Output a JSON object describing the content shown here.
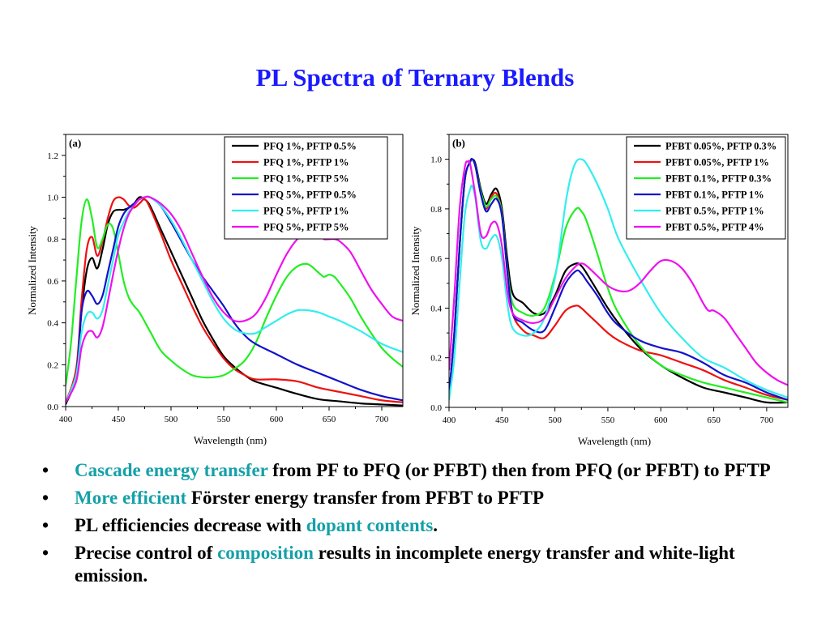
{
  "title": "PL Spectra of Ternary Blends",
  "bullets": [
    {
      "segments": [
        {
          "text": "Cascade energy transfer",
          "hl": true
        },
        {
          "text": " from PF to PFQ (or PFBT) then from PFQ (or PFBT) to PFTP",
          "hl": false
        }
      ]
    },
    {
      "segments": [
        {
          "text": "More efficient",
          "hl": true
        },
        {
          "text": " Förster energy transfer from PFBT to PFTP",
          "hl": false
        }
      ]
    },
    {
      "segments": [
        {
          "text": "PL efficiencies decrease with ",
          "hl": false
        },
        {
          "text": "dopant contents",
          "hl": true
        },
        {
          "text": ".",
          "hl": false
        }
      ]
    },
    {
      "segments": [
        {
          "text": "Precise control of ",
          "hl": false
        },
        {
          "text": "composition",
          "hl": true
        },
        {
          "text": " results in incomplete energy transfer and white-light emission.",
          "hl": false
        }
      ]
    }
  ],
  "colors": {
    "title": "#1a1aff",
    "highlight": "#15a0a8",
    "black": "#000000",
    "red": "#ee1111",
    "green": "#22ee22",
    "blue": "#1111cc",
    "cyan": "#33eeee",
    "magenta": "#ee11ee"
  },
  "chart_data": [
    {
      "type": "line",
      "panel_label": "(a)",
      "xlabel": "Wavelength (nm)",
      "ylabel": "Normalized Intensity",
      "xlim": [
        400,
        720
      ],
      "ylim": [
        0.0,
        1.3
      ],
      "xticks": [
        400,
        450,
        500,
        550,
        600,
        650,
        700
      ],
      "yticks": [
        0.0,
        0.2,
        0.4,
        0.6,
        0.8,
        1.0,
        1.2
      ],
      "ytick_labels": [
        "0.0",
        "0.2",
        "0.4",
        "0.6",
        "0.8",
        "1.0",
        "1.2"
      ],
      "legend_position": "top-right",
      "series": [
        {
          "name": "PFQ 1%, PFTP 0.5%",
          "color": "black",
          "x": [
            400,
            410,
            415,
            420,
            425,
            430,
            435,
            440,
            445,
            450,
            455,
            460,
            465,
            470,
            475,
            480,
            490,
            500,
            510,
            520,
            530,
            540,
            550,
            560,
            570,
            580,
            600,
            620,
            640,
            660,
            680,
            700,
            720
          ],
          "y": [
            0.01,
            0.15,
            0.45,
            0.65,
            0.71,
            0.66,
            0.75,
            0.87,
            0.93,
            0.94,
            0.94,
            0.95,
            0.97,
            1.0,
            0.99,
            0.96,
            0.85,
            0.74,
            0.63,
            0.52,
            0.41,
            0.32,
            0.24,
            0.19,
            0.15,
            0.12,
            0.09,
            0.06,
            0.035,
            0.025,
            0.015,
            0.01,
            0.005
          ]
        },
        {
          "name": "PFQ 1%, PFTP 1%",
          "color": "red",
          "x": [
            400,
            410,
            415,
            420,
            425,
            430,
            435,
            440,
            445,
            450,
            455,
            460,
            465,
            470,
            475,
            480,
            490,
            500,
            510,
            520,
            530,
            540,
            550,
            560,
            570,
            580,
            600,
            620,
            640,
            660,
            680,
            700,
            720
          ],
          "y": [
            0.02,
            0.18,
            0.5,
            0.75,
            0.81,
            0.72,
            0.79,
            0.9,
            0.98,
            1.0,
            0.99,
            0.96,
            0.95,
            0.97,
            0.99,
            0.95,
            0.83,
            0.7,
            0.59,
            0.48,
            0.38,
            0.3,
            0.23,
            0.18,
            0.15,
            0.13,
            0.13,
            0.12,
            0.09,
            0.07,
            0.05,
            0.03,
            0.02
          ]
        },
        {
          "name": "PFQ 1%, PFTP 5%",
          "color": "green",
          "x": [
            400,
            405,
            410,
            415,
            420,
            425,
            430,
            435,
            440,
            445,
            450,
            455,
            460,
            465,
            470,
            480,
            490,
            500,
            510,
            520,
            530,
            540,
            550,
            560,
            570,
            580,
            590,
            600,
            610,
            620,
            630,
            640,
            645,
            650,
            655,
            660,
            670,
            680,
            690,
            700,
            710,
            720
          ],
          "y": [
            0.1,
            0.3,
            0.6,
            0.88,
            0.99,
            0.9,
            0.76,
            0.8,
            0.87,
            0.85,
            0.73,
            0.6,
            0.52,
            0.48,
            0.45,
            0.36,
            0.27,
            0.22,
            0.18,
            0.15,
            0.14,
            0.14,
            0.15,
            0.18,
            0.22,
            0.3,
            0.42,
            0.53,
            0.62,
            0.67,
            0.68,
            0.64,
            0.62,
            0.63,
            0.62,
            0.59,
            0.52,
            0.43,
            0.35,
            0.28,
            0.23,
            0.19
          ]
        },
        {
          "name": "PFQ 5%, PFTP 0.5%",
          "color": "blue",
          "x": [
            400,
            410,
            415,
            420,
            425,
            430,
            435,
            440,
            445,
            450,
            455,
            460,
            465,
            470,
            475,
            480,
            490,
            500,
            510,
            520,
            530,
            540,
            550,
            560,
            570,
            580,
            600,
            620,
            640,
            660,
            680,
            700,
            720
          ],
          "y": [
            0.02,
            0.15,
            0.45,
            0.55,
            0.53,
            0.49,
            0.53,
            0.64,
            0.75,
            0.86,
            0.92,
            0.95,
            0.97,
            0.99,
            1.0,
            1.0,
            0.96,
            0.88,
            0.79,
            0.7,
            0.62,
            0.55,
            0.48,
            0.4,
            0.34,
            0.3,
            0.25,
            0.2,
            0.16,
            0.12,
            0.08,
            0.05,
            0.03
          ]
        },
        {
          "name": "PFQ 5%, PFTP 1%",
          "color": "cyan",
          "x": [
            400,
            410,
            415,
            420,
            425,
            430,
            435,
            440,
            445,
            450,
            455,
            460,
            465,
            470,
            475,
            480,
            490,
            500,
            510,
            520,
            530,
            540,
            550,
            560,
            570,
            580,
            590,
            600,
            610,
            620,
            630,
            640,
            650,
            660,
            680,
            700,
            720
          ],
          "y": [
            0.02,
            0.15,
            0.35,
            0.44,
            0.45,
            0.42,
            0.46,
            0.58,
            0.7,
            0.82,
            0.88,
            0.93,
            0.96,
            0.99,
            1.0,
            1.0,
            0.96,
            0.89,
            0.8,
            0.7,
            0.6,
            0.5,
            0.42,
            0.37,
            0.35,
            0.35,
            0.38,
            0.41,
            0.44,
            0.46,
            0.46,
            0.45,
            0.43,
            0.41,
            0.36,
            0.3,
            0.26
          ]
        },
        {
          "name": "PFQ 5%, PFTP 5%",
          "color": "magenta",
          "x": [
            400,
            410,
            415,
            420,
            425,
            430,
            435,
            440,
            445,
            450,
            455,
            460,
            465,
            470,
            475,
            480,
            490,
            500,
            510,
            520,
            530,
            540,
            550,
            560,
            570,
            580,
            590,
            600,
            610,
            620,
            630,
            640,
            645,
            650,
            655,
            660,
            670,
            680,
            690,
            700,
            710,
            720
          ],
          "y": [
            0.02,
            0.12,
            0.28,
            0.35,
            0.36,
            0.33,
            0.38,
            0.5,
            0.63,
            0.75,
            0.85,
            0.92,
            0.96,
            0.99,
            1.0,
            1.0,
            0.97,
            0.92,
            0.84,
            0.73,
            0.62,
            0.52,
            0.45,
            0.41,
            0.41,
            0.44,
            0.52,
            0.63,
            0.73,
            0.8,
            0.83,
            0.82,
            0.8,
            0.8,
            0.8,
            0.79,
            0.74,
            0.65,
            0.56,
            0.49,
            0.43,
            0.41
          ]
        }
      ]
    },
    {
      "type": "line",
      "panel_label": "(b)",
      "xlabel": "Wavelength (nm)",
      "ylabel": "Normalized Intensity",
      "xlim": [
        400,
        720
      ],
      "ylim": [
        0.0,
        1.1
      ],
      "xticks": [
        400,
        450,
        500,
        550,
        600,
        650,
        700
      ],
      "yticks": [
        0.0,
        0.2,
        0.4,
        0.6,
        0.8,
        1.0
      ],
      "ytick_labels": [
        "0.0",
        "0.2",
        "0.4",
        "0.6",
        "0.8",
        "1.0"
      ],
      "legend_position": "top-right",
      "series": [
        {
          "name": "PFBT 0.05%, PFTP 0.3%",
          "color": "black",
          "x": [
            400,
            405,
            410,
            415,
            420,
            422,
            425,
            430,
            435,
            440,
            445,
            450,
            455,
            460,
            470,
            480,
            490,
            500,
            510,
            520,
            525,
            530,
            540,
            550,
            560,
            580,
            600,
            620,
            640,
            660,
            680,
            700,
            720
          ],
          "y": [
            0.05,
            0.3,
            0.65,
            0.92,
            0.99,
            1.0,
            0.98,
            0.88,
            0.82,
            0.86,
            0.88,
            0.8,
            0.6,
            0.46,
            0.42,
            0.38,
            0.38,
            0.45,
            0.55,
            0.58,
            0.57,
            0.54,
            0.47,
            0.4,
            0.34,
            0.24,
            0.17,
            0.12,
            0.08,
            0.06,
            0.04,
            0.02,
            0.02
          ]
        },
        {
          "name": "PFBT 0.05%, PFTP 1%",
          "color": "red",
          "x": [
            400,
            405,
            410,
            415,
            420,
            422,
            425,
            430,
            435,
            440,
            445,
            450,
            455,
            460,
            470,
            480,
            490,
            500,
            510,
            520,
            525,
            530,
            540,
            550,
            560,
            580,
            600,
            620,
            640,
            660,
            680,
            700,
            720
          ],
          "y": [
            0.05,
            0.3,
            0.65,
            0.92,
            0.99,
            1.0,
            0.97,
            0.86,
            0.8,
            0.85,
            0.86,
            0.78,
            0.55,
            0.38,
            0.31,
            0.29,
            0.28,
            0.33,
            0.39,
            0.41,
            0.4,
            0.38,
            0.34,
            0.3,
            0.27,
            0.23,
            0.21,
            0.18,
            0.15,
            0.11,
            0.08,
            0.05,
            0.03
          ]
        },
        {
          "name": "PFBT 0.1%, PFTP 0.3%",
          "color": "green",
          "x": [
            400,
            405,
            410,
            415,
            420,
            422,
            425,
            430,
            435,
            440,
            445,
            450,
            455,
            460,
            470,
            480,
            490,
            500,
            510,
            520,
            525,
            530,
            540,
            550,
            560,
            580,
            600,
            620,
            640,
            660,
            680,
            700,
            720
          ],
          "y": [
            0.04,
            0.3,
            0.65,
            0.92,
            0.99,
            1.0,
            0.97,
            0.87,
            0.81,
            0.84,
            0.85,
            0.78,
            0.56,
            0.42,
            0.38,
            0.37,
            0.4,
            0.53,
            0.72,
            0.8,
            0.79,
            0.75,
            0.62,
            0.48,
            0.38,
            0.25,
            0.17,
            0.13,
            0.1,
            0.08,
            0.06,
            0.04,
            0.02
          ]
        },
        {
          "name": "PFBT 0.1%, PFTP 1%",
          "color": "blue",
          "x": [
            400,
            405,
            410,
            415,
            420,
            422,
            425,
            430,
            435,
            440,
            445,
            450,
            455,
            460,
            470,
            480,
            490,
            500,
            510,
            520,
            525,
            530,
            540,
            550,
            560,
            580,
            600,
            620,
            640,
            660,
            680,
            700,
            720
          ],
          "y": [
            0.05,
            0.3,
            0.65,
            0.92,
            0.99,
            1.0,
            0.97,
            0.86,
            0.79,
            0.82,
            0.84,
            0.77,
            0.55,
            0.38,
            0.34,
            0.31,
            0.31,
            0.4,
            0.5,
            0.55,
            0.54,
            0.51,
            0.45,
            0.38,
            0.33,
            0.27,
            0.24,
            0.22,
            0.18,
            0.13,
            0.1,
            0.06,
            0.03
          ]
        },
        {
          "name": "PFBT 0.5%, PFTP 1%",
          "color": "cyan",
          "x": [
            400,
            405,
            410,
            415,
            420,
            422,
            425,
            430,
            435,
            440,
            445,
            450,
            455,
            460,
            470,
            480,
            490,
            500,
            505,
            510,
            515,
            520,
            525,
            530,
            540,
            550,
            560,
            580,
            600,
            620,
            640,
            660,
            680,
            700,
            720
          ],
          "y": [
            0.03,
            0.2,
            0.5,
            0.78,
            0.88,
            0.89,
            0.84,
            0.67,
            0.64,
            0.68,
            0.69,
            0.6,
            0.42,
            0.32,
            0.29,
            0.3,
            0.36,
            0.52,
            0.66,
            0.82,
            0.93,
            0.99,
            1.0,
            0.98,
            0.9,
            0.8,
            0.68,
            0.52,
            0.38,
            0.28,
            0.2,
            0.16,
            0.11,
            0.07,
            0.04
          ]
        },
        {
          "name": "PFBT 0.5%, PFTP 4%",
          "color": "magenta",
          "x": [
            400,
            405,
            410,
            415,
            418,
            420,
            425,
            430,
            435,
            440,
            445,
            450,
            455,
            460,
            470,
            480,
            490,
            500,
            510,
            520,
            525,
            530,
            540,
            550,
            560,
            570,
            580,
            590,
            600,
            610,
            620,
            630,
            640,
            645,
            650,
            660,
            670,
            680,
            690,
            700,
            710,
            720
          ],
          "y": [
            0.15,
            0.45,
            0.8,
            0.97,
            0.99,
            0.98,
            0.85,
            0.7,
            0.69,
            0.74,
            0.74,
            0.65,
            0.47,
            0.38,
            0.35,
            0.34,
            0.36,
            0.44,
            0.52,
            0.57,
            0.58,
            0.57,
            0.53,
            0.49,
            0.47,
            0.47,
            0.5,
            0.55,
            0.59,
            0.59,
            0.56,
            0.5,
            0.42,
            0.39,
            0.39,
            0.36,
            0.3,
            0.24,
            0.18,
            0.14,
            0.11,
            0.09
          ]
        }
      ]
    }
  ]
}
